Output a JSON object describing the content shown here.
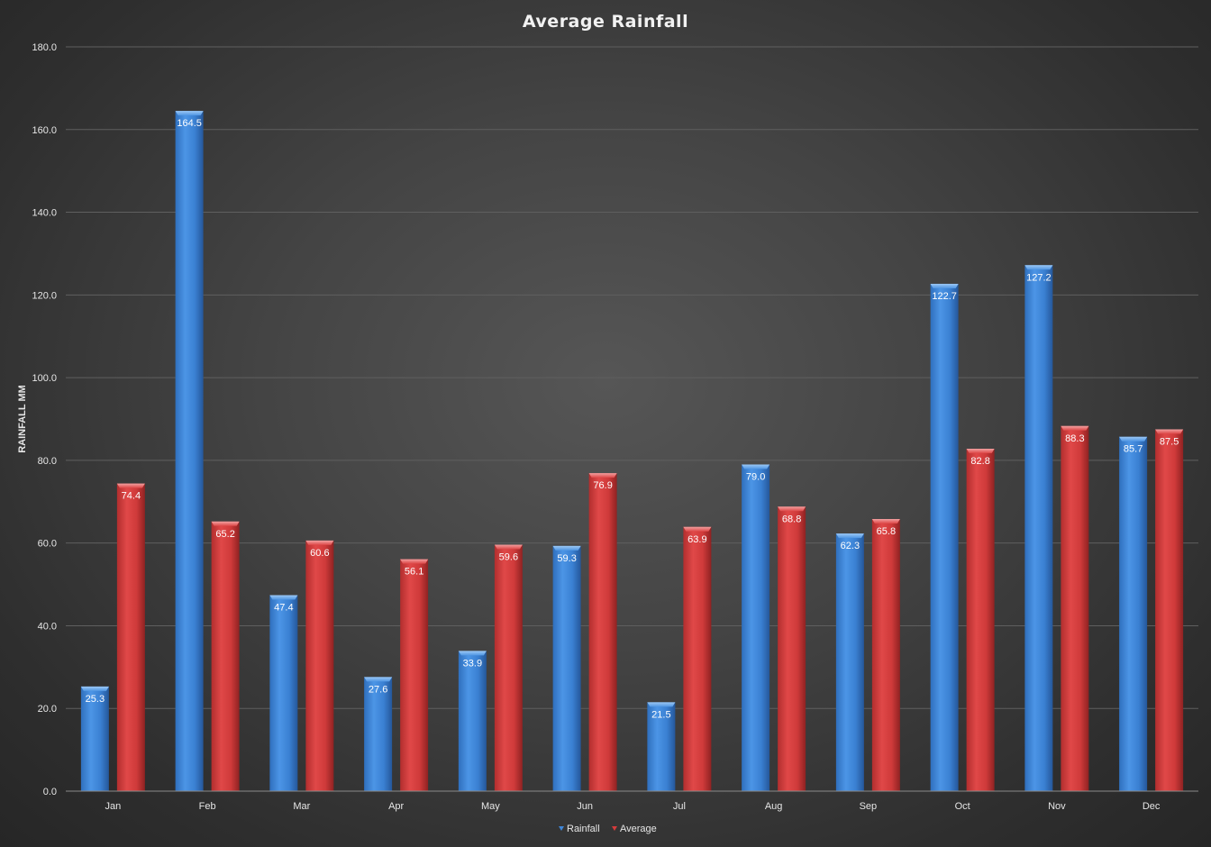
{
  "chart_data": {
    "type": "bar",
    "title": "Average Rainfall",
    "xlabel": "",
    "ylabel": "RAINFALL MM",
    "categories": [
      "Jan",
      "Feb",
      "Mar",
      "Apr",
      "May",
      "Jun",
      "Jul",
      "Aug",
      "Sep",
      "Oct",
      "Nov",
      "Dec"
    ],
    "series": [
      {
        "name": "Rainfall",
        "color": "#3f86d8",
        "values": [
          25.3,
          164.5,
          47.4,
          27.6,
          33.9,
          59.3,
          21.5,
          79.0,
          62.3,
          122.7,
          127.2,
          85.7
        ]
      },
      {
        "name": "Average",
        "color": "#d63b3b",
        "values": [
          74.4,
          65.2,
          60.6,
          56.1,
          59.6,
          76.9,
          63.9,
          68.8,
          65.8,
          82.8,
          88.3,
          87.5
        ]
      }
    ],
    "ylim": [
      0,
      180
    ],
    "ytick_labels": [
      "0.0",
      "20.0",
      "40.0",
      "60.0",
      "80.0",
      "100.0",
      "120.0",
      "140.0",
      "160.0",
      "180.0"
    ],
    "data_labels": true,
    "grid": true,
    "legend": "bottom-center"
  }
}
